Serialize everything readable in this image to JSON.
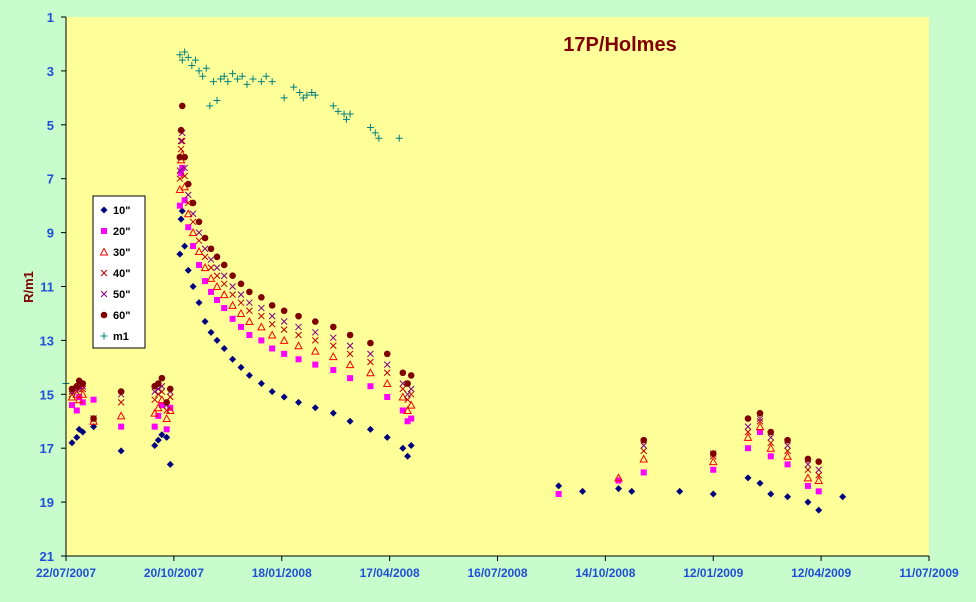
{
  "chart_data": {
    "type": "scatter",
    "title": "17P/Holmes",
    "ylabel": "R/m1",
    "xlabel": "",
    "x_range": [
      "2007-07-22",
      "2009-07-11"
    ],
    "ylim": [
      1,
      21
    ],
    "y_inverted": true,
    "y_ticks": [
      "1",
      "3",
      "5",
      "7",
      "9",
      "11",
      "13",
      "15",
      "17",
      "19",
      "21"
    ],
    "x_ticks": [
      "22/07/2007",
      "20/10/2007",
      "18/01/2008",
      "17/04/2008",
      "16/07/2008",
      "14/10/2008",
      "12/01/2009",
      "12/04/2009",
      "11/07/2009"
    ],
    "grid": false,
    "legend_position": "left",
    "colors": {
      "background": "#c8fccc",
      "plot_area": "#ffff99",
      "axis_text": "#1f4fd8",
      "title": "#800000"
    },
    "series": [
      {
        "name": "10\"",
        "marker": "diamond",
        "color": "#000080",
        "x": [
          "2007-07-27",
          "2007-07-31",
          "2007-08-02",
          "2007-08-05",
          "2007-08-14",
          "2007-09-06",
          "2007-10-04",
          "2007-10-07",
          "2007-10-10",
          "2007-10-14",
          "2007-10-17",
          "2007-10-25",
          "2007-10-26",
          "2007-10-27",
          "2007-10-29",
          "2007-11-01",
          "2007-11-05",
          "2007-11-10",
          "2007-11-15",
          "2007-11-20",
          "2007-11-25",
          "2007-12-01",
          "2007-12-08",
          "2007-12-15",
          "2007-12-22",
          "2008-01-01",
          "2008-01-10",
          "2008-01-20",
          "2008-02-01",
          "2008-02-15",
          "2008-03-01",
          "2008-03-15",
          "2008-04-01",
          "2008-04-15",
          "2008-04-28",
          "2008-05-02",
          "2008-05-05",
          "2008-09-05",
          "2008-09-25",
          "2008-10-25",
          "2008-11-05",
          "2008-12-15",
          "2009-01-12",
          "2009-02-10",
          "2009-02-20",
          "2009-03-01",
          "2009-03-15",
          "2009-04-01",
          "2009-04-10",
          "2009-04-30"
        ],
        "y": [
          16.8,
          16.6,
          16.3,
          16.4,
          16.2,
          17.1,
          16.9,
          16.7,
          16.5,
          16.6,
          17.6,
          9.8,
          8.5,
          8.2,
          9.5,
          10.4,
          11.0,
          11.6,
          12.3,
          12.7,
          13.0,
          13.3,
          13.7,
          14.0,
          14.3,
          14.6,
          14.9,
          15.1,
          15.3,
          15.5,
          15.7,
          16.0,
          16.3,
          16.6,
          17.0,
          17.3,
          16.9,
          18.4,
          18.6,
          18.5,
          18.6,
          18.6,
          18.7,
          18.1,
          18.3,
          18.7,
          18.8,
          19.0,
          19.3,
          18.8
        ]
      },
      {
        "name": "20\"",
        "marker": "square",
        "color": "#ff00ff",
        "x": [
          "2007-07-27",
          "2007-07-31",
          "2007-08-02",
          "2007-08-05",
          "2007-08-14",
          "2007-09-06",
          "2007-10-04",
          "2007-10-07",
          "2007-10-10",
          "2007-10-14",
          "2007-10-17",
          "2007-10-25",
          "2007-10-26",
          "2007-10-27",
          "2007-10-29",
          "2007-11-01",
          "2007-11-05",
          "2007-11-10",
          "2007-11-15",
          "2007-11-20",
          "2007-11-25",
          "2007-12-01",
          "2007-12-08",
          "2007-12-15",
          "2007-12-22",
          "2008-01-01",
          "2008-01-10",
          "2008-01-20",
          "2008-02-01",
          "2008-02-15",
          "2008-03-01",
          "2008-03-15",
          "2008-04-01",
          "2008-04-15",
          "2008-04-28",
          "2008-05-02",
          "2008-05-05",
          "2008-09-05",
          "2008-10-25",
          "2008-11-15",
          "2009-01-12",
          "2009-02-10",
          "2009-02-20",
          "2009-03-01",
          "2009-03-15",
          "2009-04-01",
          "2009-04-10"
        ],
        "y": [
          15.4,
          15.6,
          15.1,
          15.3,
          15.2,
          16.2,
          16.2,
          15.8,
          15.4,
          16.3,
          15.5,
          8.0,
          6.8,
          6.6,
          7.8,
          8.8,
          9.5,
          10.2,
          10.8,
          11.2,
          11.5,
          11.8,
          12.2,
          12.5,
          12.8,
          13.0,
          13.3,
          13.5,
          13.7,
          13.9,
          14.1,
          14.4,
          14.7,
          15.1,
          15.6,
          16.0,
          15.9,
          18.7,
          18.2,
          17.9,
          17.8,
          17.0,
          16.4,
          17.3,
          17.6,
          18.4,
          18.6
        ]
      },
      {
        "name": "30\"",
        "marker": "triangle",
        "color": "#ff0000",
        "x": [
          "2007-07-27",
          "2007-07-31",
          "2007-08-02",
          "2007-08-05",
          "2007-08-14",
          "2007-09-06",
          "2007-10-04",
          "2007-10-07",
          "2007-10-10",
          "2007-10-14",
          "2007-10-17",
          "2007-10-25",
          "2007-10-26",
          "2007-10-27",
          "2007-10-29",
          "2007-11-01",
          "2007-11-05",
          "2007-11-10",
          "2007-11-15",
          "2007-11-20",
          "2007-11-25",
          "2007-12-01",
          "2007-12-08",
          "2007-12-15",
          "2007-12-22",
          "2008-01-01",
          "2008-01-10",
          "2008-01-20",
          "2008-02-01",
          "2008-02-15",
          "2008-03-01",
          "2008-03-15",
          "2008-04-01",
          "2008-04-15",
          "2008-04-28",
          "2008-05-02",
          "2008-05-05",
          "2008-10-25",
          "2008-11-15",
          "2009-01-12",
          "2009-02-10",
          "2009-02-20",
          "2009-03-01",
          "2009-03-15",
          "2009-04-01",
          "2009-04-10"
        ],
        "y": [
          15.1,
          15.0,
          15.2,
          15.0,
          16.0,
          15.8,
          15.7,
          15.5,
          15.2,
          15.9,
          15.6,
          7.4,
          6.3,
          6.1,
          7.3,
          8.3,
          9.0,
          9.7,
          10.3,
          10.7,
          11.0,
          11.3,
          11.7,
          12.0,
          12.3,
          12.5,
          12.8,
          13.0,
          13.2,
          13.4,
          13.6,
          13.9,
          14.2,
          14.6,
          15.1,
          15.6,
          15.4,
          18.1,
          17.4,
          17.5,
          16.6,
          16.2,
          17.0,
          17.3,
          18.1,
          18.2
        ]
      },
      {
        "name": "40\"",
        "marker": "x",
        "color": "#c00000",
        "x": [
          "2007-07-27",
          "2007-07-31",
          "2007-08-02",
          "2007-08-05",
          "2007-08-14",
          "2007-09-06",
          "2007-10-04",
          "2007-10-07",
          "2007-10-10",
          "2007-10-14",
          "2007-10-17",
          "2007-10-25",
          "2007-10-26",
          "2007-10-27",
          "2007-10-29",
          "2007-11-01",
          "2007-11-05",
          "2007-11-10",
          "2007-11-15",
          "2007-11-20",
          "2007-11-25",
          "2007-12-01",
          "2007-12-08",
          "2007-12-15",
          "2007-12-22",
          "2008-01-01",
          "2008-01-10",
          "2008-01-20",
          "2008-02-01",
          "2008-02-15",
          "2008-03-01",
          "2008-03-15",
          "2008-04-01",
          "2008-04-15",
          "2008-04-28",
          "2008-05-02",
          "2008-05-05",
          "2008-11-15",
          "2009-01-12",
          "2009-02-10",
          "2009-02-20",
          "2009-03-01",
          "2009-03-15",
          "2009-04-01",
          "2009-04-10"
        ],
        "y": [
          15.0,
          14.9,
          14.8,
          14.8,
          15.9,
          15.3,
          15.2,
          15.0,
          14.9,
          15.6,
          15.1,
          7.0,
          5.9,
          5.6,
          6.9,
          7.9,
          8.6,
          9.3,
          9.9,
          10.3,
          10.6,
          10.9,
          11.3,
          11.6,
          11.9,
          12.1,
          12.4,
          12.6,
          12.8,
          13.0,
          13.2,
          13.5,
          13.8,
          14.2,
          14.8,
          15.2,
          15.0,
          17.1,
          17.3,
          16.4,
          16.0,
          16.8,
          17.1,
          17.8,
          18.0
        ]
      },
      {
        "name": "50\"",
        "marker": "x",
        "color": "#800080",
        "x": [
          "2007-07-27",
          "2007-07-31",
          "2007-08-02",
          "2007-08-05",
          "2007-08-14",
          "2007-09-06",
          "2007-10-04",
          "2007-10-07",
          "2007-10-10",
          "2007-10-14",
          "2007-10-17",
          "2007-10-25",
          "2007-10-26",
          "2007-10-27",
          "2007-10-29",
          "2007-11-01",
          "2007-11-05",
          "2007-11-10",
          "2007-11-15",
          "2007-11-20",
          "2007-11-25",
          "2007-12-01",
          "2007-12-08",
          "2007-12-15",
          "2007-12-22",
          "2008-01-01",
          "2008-01-10",
          "2008-01-20",
          "2008-02-01",
          "2008-02-15",
          "2008-03-01",
          "2008-03-15",
          "2008-04-01",
          "2008-04-15",
          "2008-04-28",
          "2008-05-02",
          "2008-05-05",
          "2008-11-15",
          "2009-01-12",
          "2009-02-10",
          "2009-02-20",
          "2009-03-01",
          "2009-03-15",
          "2009-04-01",
          "2009-04-10"
        ],
        "y": [
          14.9,
          14.8,
          14.7,
          14.7,
          15.9,
          15.0,
          14.9,
          14.8,
          14.7,
          15.4,
          14.9,
          6.7,
          5.6,
          5.3,
          6.6,
          7.6,
          8.3,
          9.0,
          9.6,
          10.0,
          10.3,
          10.6,
          11.0,
          11.3,
          11.6,
          11.8,
          12.1,
          12.3,
          12.5,
          12.7,
          12.9,
          13.2,
          13.5,
          13.9,
          14.6,
          15.0,
          14.8,
          16.9,
          17.2,
          16.2,
          15.9,
          16.6,
          16.9,
          17.6,
          17.8
        ]
      },
      {
        "name": "60\"",
        "marker": "circle",
        "color": "#800000",
        "x": [
          "2007-07-27",
          "2007-07-31",
          "2007-08-02",
          "2007-08-05",
          "2007-08-14",
          "2007-09-06",
          "2007-10-04",
          "2007-10-07",
          "2007-10-10",
          "2007-10-14",
          "2007-10-17",
          "2007-10-25",
          "2007-10-26",
          "2007-10-27",
          "2007-10-29",
          "2007-11-01",
          "2007-11-05",
          "2007-11-10",
          "2007-11-15",
          "2007-11-20",
          "2007-11-25",
          "2007-12-01",
          "2007-12-08",
          "2007-12-15",
          "2007-12-22",
          "2008-01-01",
          "2008-01-10",
          "2008-01-20",
          "2008-02-01",
          "2008-02-15",
          "2008-03-01",
          "2008-03-15",
          "2008-04-01",
          "2008-04-15",
          "2008-04-28",
          "2008-05-02",
          "2008-05-05",
          "2008-11-15",
          "2009-01-12",
          "2009-02-10",
          "2009-02-20",
          "2009-03-01",
          "2009-03-15",
          "2009-04-01",
          "2009-04-10"
        ],
        "y": [
          14.8,
          14.7,
          14.5,
          14.6,
          15.9,
          14.9,
          14.7,
          14.6,
          14.4,
          15.3,
          14.8,
          6.2,
          5.2,
          4.3,
          6.2,
          7.2,
          7.9,
          8.6,
          9.2,
          9.6,
          9.9,
          10.2,
          10.6,
          10.9,
          11.2,
          11.4,
          11.7,
          11.9,
          12.1,
          12.3,
          12.5,
          12.8,
          13.1,
          13.5,
          14.2,
          14.6,
          14.3,
          16.7,
          17.2,
          15.9,
          15.7,
          16.4,
          16.7,
          17.4,
          17.5
        ]
      },
      {
        "name": "m1",
        "marker": "plus",
        "color": "#008080",
        "x": [
          "2007-07-22",
          "2007-10-25",
          "2007-10-27",
          "2007-10-29",
          "2007-11-01",
          "2007-11-04",
          "2007-11-07",
          "2007-11-10",
          "2007-11-13",
          "2007-11-16",
          "2007-11-19",
          "2007-11-22",
          "2007-11-25",
          "2007-11-28",
          "2007-12-01",
          "2007-12-04",
          "2007-12-08",
          "2007-12-12",
          "2007-12-16",
          "2007-12-20",
          "2007-12-25",
          "2008-01-01",
          "2008-01-05",
          "2008-01-10",
          "2008-01-20",
          "2008-01-28",
          "2008-02-02",
          "2008-02-05",
          "2008-02-08",
          "2008-02-12",
          "2008-02-15",
          "2008-03-01",
          "2008-03-05",
          "2008-03-10",
          "2008-03-12",
          "2008-03-15",
          "2008-04-01",
          "2008-04-05",
          "2008-04-08",
          "2008-04-25"
        ],
        "y": [
          14.6,
          2.4,
          2.6,
          2.3,
          2.5,
          2.8,
          2.6,
          3.0,
          3.2,
          2.9,
          4.3,
          3.4,
          4.1,
          3.3,
          3.2,
          3.4,
          3.1,
          3.3,
          3.2,
          3.5,
          3.3,
          3.4,
          3.2,
          3.4,
          4.0,
          3.6,
          3.8,
          4.0,
          3.9,
          3.8,
          3.9,
          4.3,
          4.5,
          4.6,
          4.8,
          4.6,
          5.1,
          5.3,
          5.5,
          5.5
        ]
      }
    ]
  }
}
